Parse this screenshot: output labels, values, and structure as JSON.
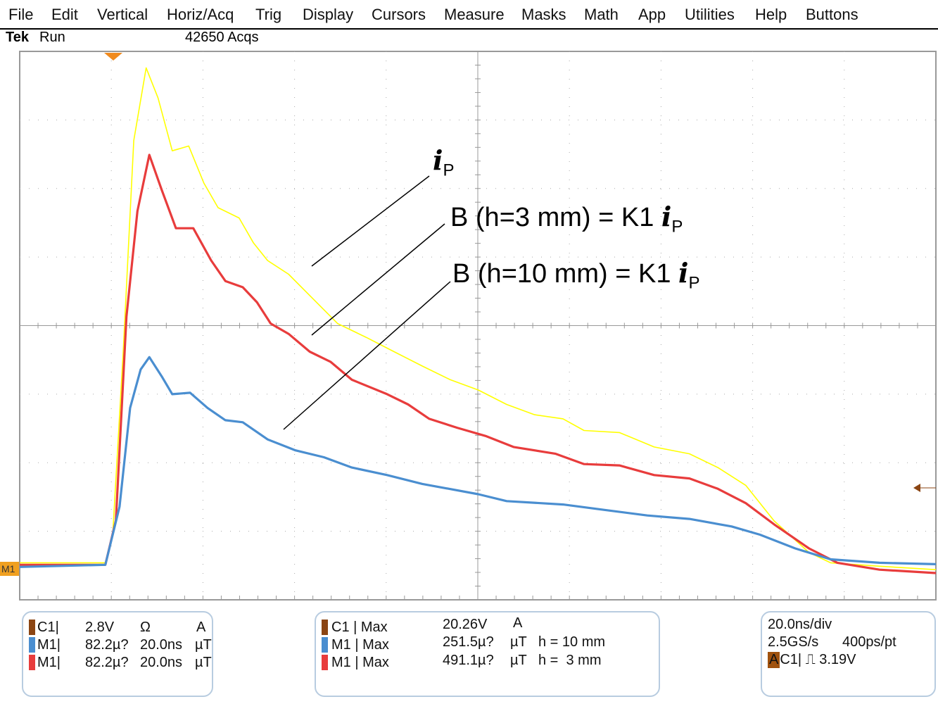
{
  "menu": [
    "File",
    "Edit",
    "Vertical",
    "Horiz/Acq",
    "Trig",
    "Display",
    "Cursors",
    "Measure",
    "Masks",
    "Math",
    "App",
    "Utilities",
    "Help",
    "Buttons"
  ],
  "status": {
    "brand": "Tek",
    "state": "Run",
    "acqs": "42650 Acqs"
  },
  "markers": {
    "ref_label": "M1"
  },
  "annotations": {
    "ip": {
      "sym": "i",
      "sub": "P"
    },
    "b3": {
      "text": "B (h=3 mm) = K1 ",
      "sym": "i",
      "sub": "P"
    },
    "b10": {
      "text": "B (h=10 mm)  = K1 ",
      "sym": "i",
      "sub": "P"
    }
  },
  "channels_panel": [
    {
      "color": "#8b4513",
      "ch": "C1",
      "scale": "2.8V",
      "extra": "Ω",
      "unit": "A"
    },
    {
      "color": "#4a8ed0",
      "ch": "M1",
      "scale": "82.2µ?",
      "extra": "20.0ns",
      "unit": "µT"
    },
    {
      "color": "#e83c3c",
      "ch": "M1",
      "scale": "82.2µ?",
      "extra": "20.0ns",
      "unit": "µT"
    }
  ],
  "measure_panel": [
    {
      "color": "#8b4513",
      "ch": "C1",
      "meas": "Max",
      "value": "20.26V",
      "unit": "A",
      "note": ""
    },
    {
      "color": "#4a8ed0",
      "ch": "M1",
      "meas": "Max",
      "value": "251.5µ?",
      "unit": "µT",
      "note": "h = 10 mm"
    },
    {
      "color": "#e83c3c",
      "ch": "M1",
      "meas": "Max",
      "value": "491.1µ?",
      "unit": "µT",
      "note": "h =  3 mm"
    }
  ],
  "timebase_panel": {
    "timebase": "20.0ns/div",
    "rate": "2.5GS/s",
    "resolution": "400ps/pt",
    "trig_mode": "A",
    "trig_src": "C1",
    "trig_level": "3.19V"
  },
  "chart_data": {
    "type": "line",
    "grid": true,
    "xlim_ns": [
      0,
      200
    ],
    "ylim_div": [
      -4,
      4
    ],
    "series": [
      {
        "name": "iP",
        "color": "#ffff00",
        "x": [
          0,
          18.7,
          20.3,
          22.6,
          24.9,
          27.6,
          30.2,
          33.3,
          36.9,
          40.2,
          43.3,
          47.9,
          51.0,
          54.1,
          58.7,
          63.3,
          69.4,
          75.6,
          81.7,
          87.9,
          94.0,
          100.1,
          106.3,
          112.4,
          118.6,
          123.2,
          130.9,
          138.5,
          146.2,
          152.4,
          158.5,
          164.7,
          172.3,
          177.0,
          187.7,
          200
        ],
        "y": [
          -3.46,
          -3.46,
          -3.05,
          -0.38,
          2.7,
          3.76,
          3.32,
          2.55,
          2.62,
          2.08,
          1.72,
          1.57,
          1.21,
          0.95,
          0.75,
          0.44,
          0.03,
          -0.17,
          -0.38,
          -0.59,
          -0.79,
          -0.94,
          -1.15,
          -1.3,
          -1.36,
          -1.53,
          -1.56,
          -1.77,
          -1.87,
          -2.07,
          -2.33,
          -2.85,
          -3.31,
          -3.46,
          -3.51,
          -3.56
        ]
      },
      {
        "name": "h = 3 mm",
        "color": "#e83c3c",
        "x": [
          0,
          18.7,
          21.0,
          23.3,
          25.7,
          28.3,
          31.0,
          34.1,
          37.9,
          41.8,
          44.9,
          48.7,
          51.8,
          54.8,
          58.7,
          63.3,
          67.9,
          72.5,
          80.2,
          84.8,
          89.4,
          95.5,
          101.7,
          107.8,
          117.0,
          123.2,
          130.9,
          138.5,
          146.2,
          152.4,
          158.5,
          164.7,
          172.3,
          178.5,
          187.7,
          200
        ],
        "y": [
          -3.49,
          -3.49,
          -2.84,
          0.13,
          1.67,
          2.49,
          1.98,
          1.42,
          1.42,
          0.95,
          0.65,
          0.56,
          0.34,
          0.03,
          -0.12,
          -0.38,
          -0.53,
          -0.79,
          -1.0,
          -1.15,
          -1.36,
          -1.49,
          -1.61,
          -1.77,
          -1.87,
          -2.02,
          -2.04,
          -2.18,
          -2.23,
          -2.38,
          -2.59,
          -2.9,
          -3.25,
          -3.46,
          -3.56,
          -3.61
        ]
      },
      {
        "name": "h = 10 mm",
        "color": "#4a8ed0",
        "x": [
          0,
          18.7,
          21.8,
          24.1,
          26.4,
          28.3,
          31.0,
          33.3,
          37.2,
          41.0,
          44.9,
          48.7,
          54.1,
          60.2,
          66.4,
          72.5,
          80.2,
          87.9,
          100.1,
          106.3,
          118.6,
          127.8,
          137.0,
          146.2,
          155.4,
          161.6,
          169.3,
          177.0,
          187.7,
          200
        ],
        "y": [
          -3.52,
          -3.49,
          -2.64,
          -1.2,
          -0.64,
          -0.46,
          -0.74,
          -1.0,
          -0.98,
          -1.2,
          -1.38,
          -1.41,
          -1.66,
          -1.82,
          -1.92,
          -2.07,
          -2.18,
          -2.31,
          -2.46,
          -2.56,
          -2.61,
          -2.69,
          -2.77,
          -2.82,
          -2.93,
          -3.05,
          -3.25,
          -3.41,
          -3.46,
          -3.48
        ]
      }
    ]
  }
}
